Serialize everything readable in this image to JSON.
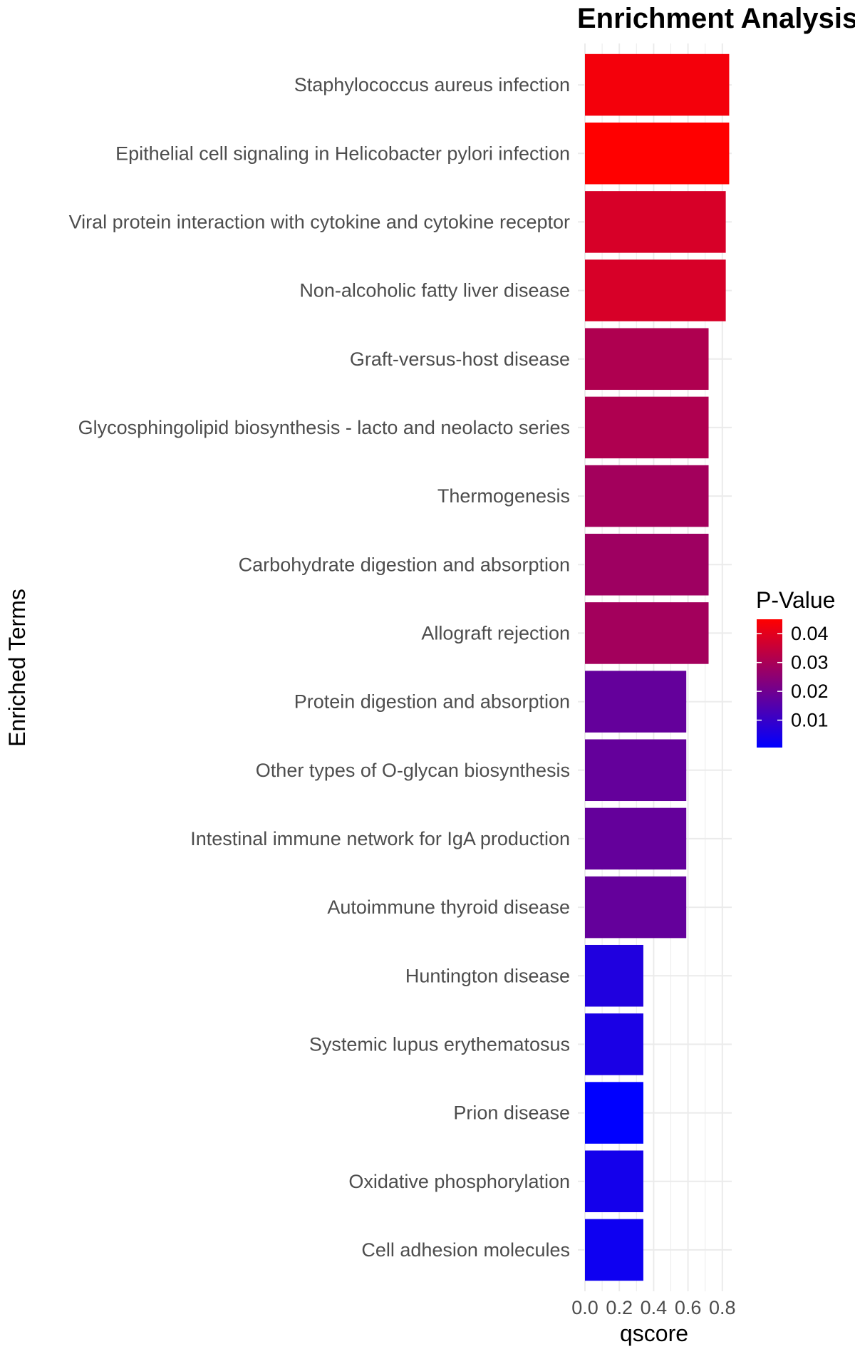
{
  "chart_data": {
    "type": "bar",
    "orientation": "horizontal",
    "title": "Enrichment Analysis",
    "xlabel": "qscore",
    "ylabel": "Enriched Terms",
    "xlim": [
      0,
      0.9
    ],
    "xticks": [
      "0.0",
      "0.2",
      "0.4",
      "0.6",
      "0.8"
    ],
    "grid": true,
    "categories": [
      "Staphylococcus aureus infection",
      "Epithelial cell signaling in Helicobacter pylori infection",
      "Viral protein interaction with cytokine and cytokine receptor",
      "Non-alcoholic fatty liver disease",
      "Graft-versus-host disease",
      "Glycosphingolipid biosynthesis - lacto and neolacto series",
      "Thermogenesis",
      "Carbohydrate digestion and absorption",
      "Allograft rejection",
      "Protein digestion and absorption",
      "Other types of O-glycan biosynthesis",
      "Intestinal immune network for IgA production",
      "Autoimmune thyroid disease",
      "Huntington disease",
      "Systemic lupus erythematosus",
      "Prion disease",
      "Oxidative phosphorylation",
      "Cell adhesion molecules"
    ],
    "values": [
      0.84,
      0.84,
      0.82,
      0.82,
      0.72,
      0.72,
      0.72,
      0.72,
      0.72,
      0.59,
      0.59,
      0.59,
      0.59,
      0.34,
      0.34,
      0.34,
      0.34,
      0.34
    ],
    "p_values": [
      0.043,
      0.045,
      0.038,
      0.038,
      0.031,
      0.031,
      0.029,
      0.028,
      0.029,
      0.018,
      0.018,
      0.018,
      0.018,
      0.006,
      0.005,
      0.0005,
      0.004,
      0.003
    ],
    "legend": {
      "title": "P-Value",
      "placement": "right",
      "labels": [
        "0.04",
        "0.03",
        "0.02",
        "0.01"
      ],
      "ticks": [
        0.04,
        0.03,
        0.02,
        0.01
      ],
      "range": [
        0.0005,
        0.045
      ],
      "color_low": "#0000ff",
      "color_high": "#ff0000"
    }
  }
}
